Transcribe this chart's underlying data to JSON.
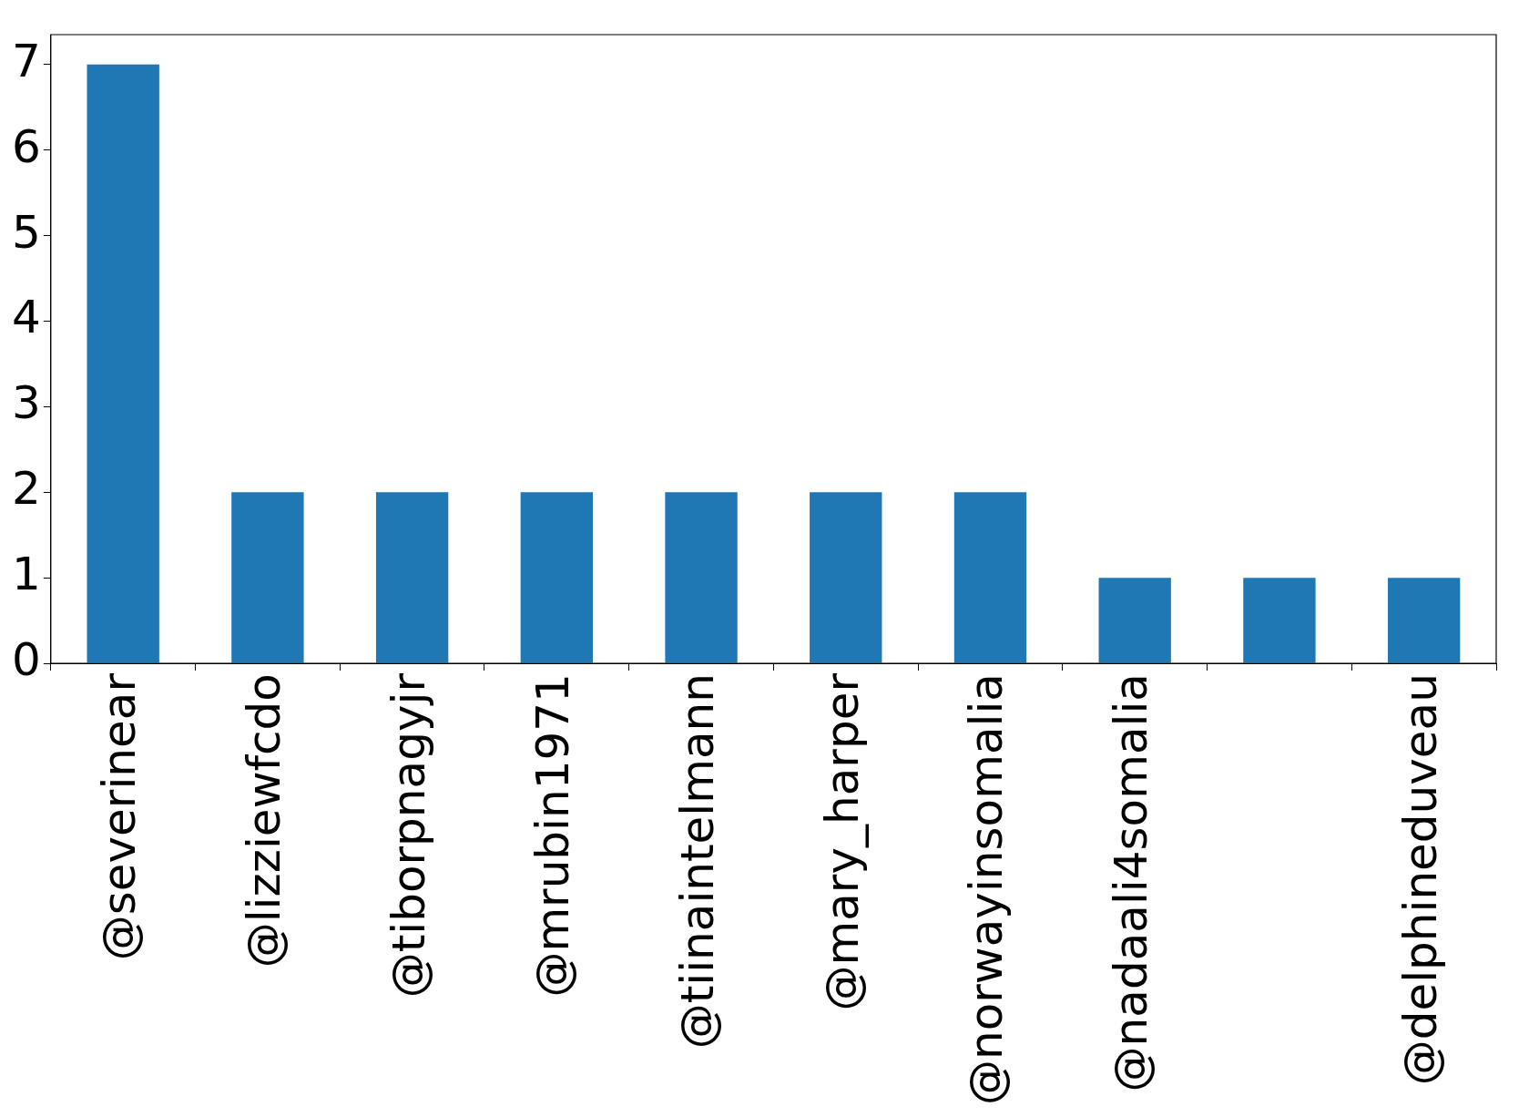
{
  "chart_data": {
    "type": "bar",
    "categories": [
      "@severinear",
      "@lizziewfcdo",
      "@tiborpnagyjr",
      "@mrubin1971",
      "@tiinaintelmann",
      "@mary_harper",
      "@norwayinsomalia",
      "@nadaali4somalia",
      null,
      "@delphineduveau"
    ],
    "values": [
      7,
      2,
      2,
      2,
      2,
      2,
      2,
      1,
      1,
      1
    ],
    "color": "#1f77b4",
    "ylim": [
      0,
      7.35
    ],
    "yticks": [
      0,
      1,
      2,
      3,
      4,
      5,
      6,
      7
    ],
    "grid": false,
    "legend": false
  }
}
